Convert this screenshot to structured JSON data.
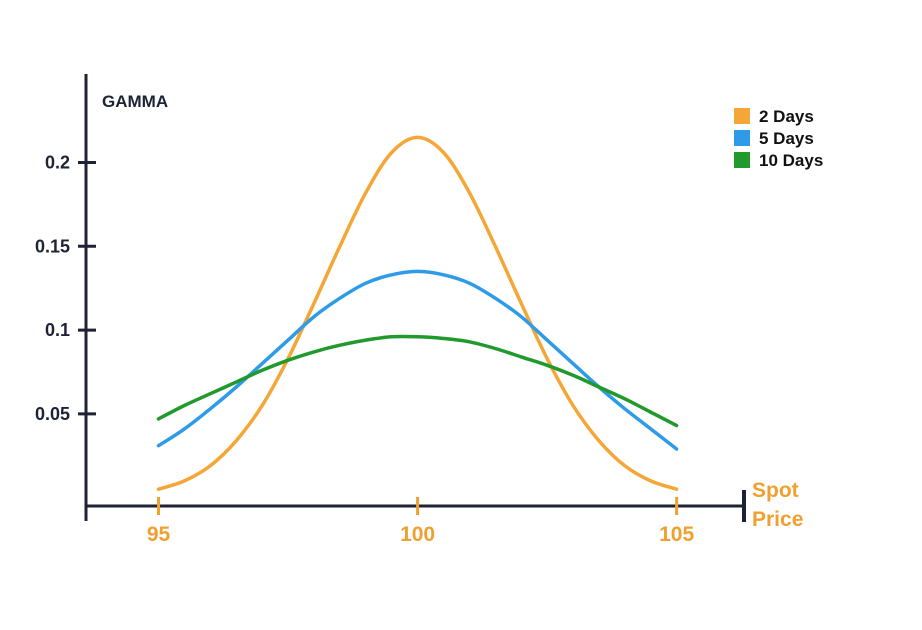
{
  "chart_data": {
    "type": "line",
    "ylabel": "GAMMA",
    "xlabel": "Spot Price",
    "xlabel_lines": [
      "Spot",
      "Price"
    ],
    "xlim": [
      93.6,
      106.3
    ],
    "ylim": [
      -0.005,
      0.26
    ],
    "x_ticks": [
      95,
      100,
      105
    ],
    "x_tick_labels": [
      "95",
      "100",
      "105"
    ],
    "y_ticks": [
      0.05,
      0.1,
      0.15,
      0.2
    ],
    "y_tick_labels": [
      "0.05",
      "0.1",
      "0.15",
      "0.2"
    ],
    "legend_position": "top-right",
    "colors": {
      "axis": "#1e2235",
      "x_text": "#f0a030"
    },
    "series": [
      {
        "name": "2 Days",
        "color": "#f4a636",
        "x": [
          95,
          95.5,
          96,
          96.5,
          97,
          97.5,
          98,
          98.5,
          99,
          99.5,
          100,
          100.5,
          101,
          101.5,
          102,
          102.5,
          103,
          103.5,
          104,
          104.5,
          105
        ],
        "values": [
          0.005,
          0.01,
          0.019,
          0.034,
          0.055,
          0.083,
          0.116,
          0.15,
          0.182,
          0.206,
          0.215,
          0.206,
          0.182,
          0.15,
          0.116,
          0.083,
          0.055,
          0.034,
          0.019,
          0.01,
          0.005
        ]
      },
      {
        "name": "5 Days",
        "color": "#2e9be8",
        "x": [
          95,
          95.5,
          96,
          96.5,
          97,
          97.5,
          98,
          98.5,
          99,
          99.5,
          100,
          100.5,
          101,
          101.5,
          102,
          102.5,
          103,
          103.5,
          104,
          104.5,
          105
        ],
        "values": [
          0.031,
          0.041,
          0.053,
          0.066,
          0.08,
          0.094,
          0.108,
          0.119,
          0.128,
          0.133,
          0.135,
          0.133,
          0.128,
          0.119,
          0.108,
          0.094,
          0.08,
          0.066,
          0.053,
          0.041,
          0.029
        ]
      },
      {
        "name": "10 Days",
        "color": "#22992c",
        "x": [
          95,
          95.5,
          96,
          96.5,
          97,
          97.5,
          98,
          98.5,
          99,
          99.5,
          100,
          100.5,
          101,
          101.5,
          102,
          102.5,
          103,
          103.5,
          104,
          104.5,
          105
        ],
        "values": [
          0.047,
          0.055,
          0.062,
          0.069,
          0.076,
          0.082,
          0.087,
          0.091,
          0.094,
          0.096,
          0.096,
          0.095,
          0.093,
          0.089,
          0.084,
          0.079,
          0.073,
          0.066,
          0.059,
          0.051,
          0.043
        ]
      }
    ]
  }
}
